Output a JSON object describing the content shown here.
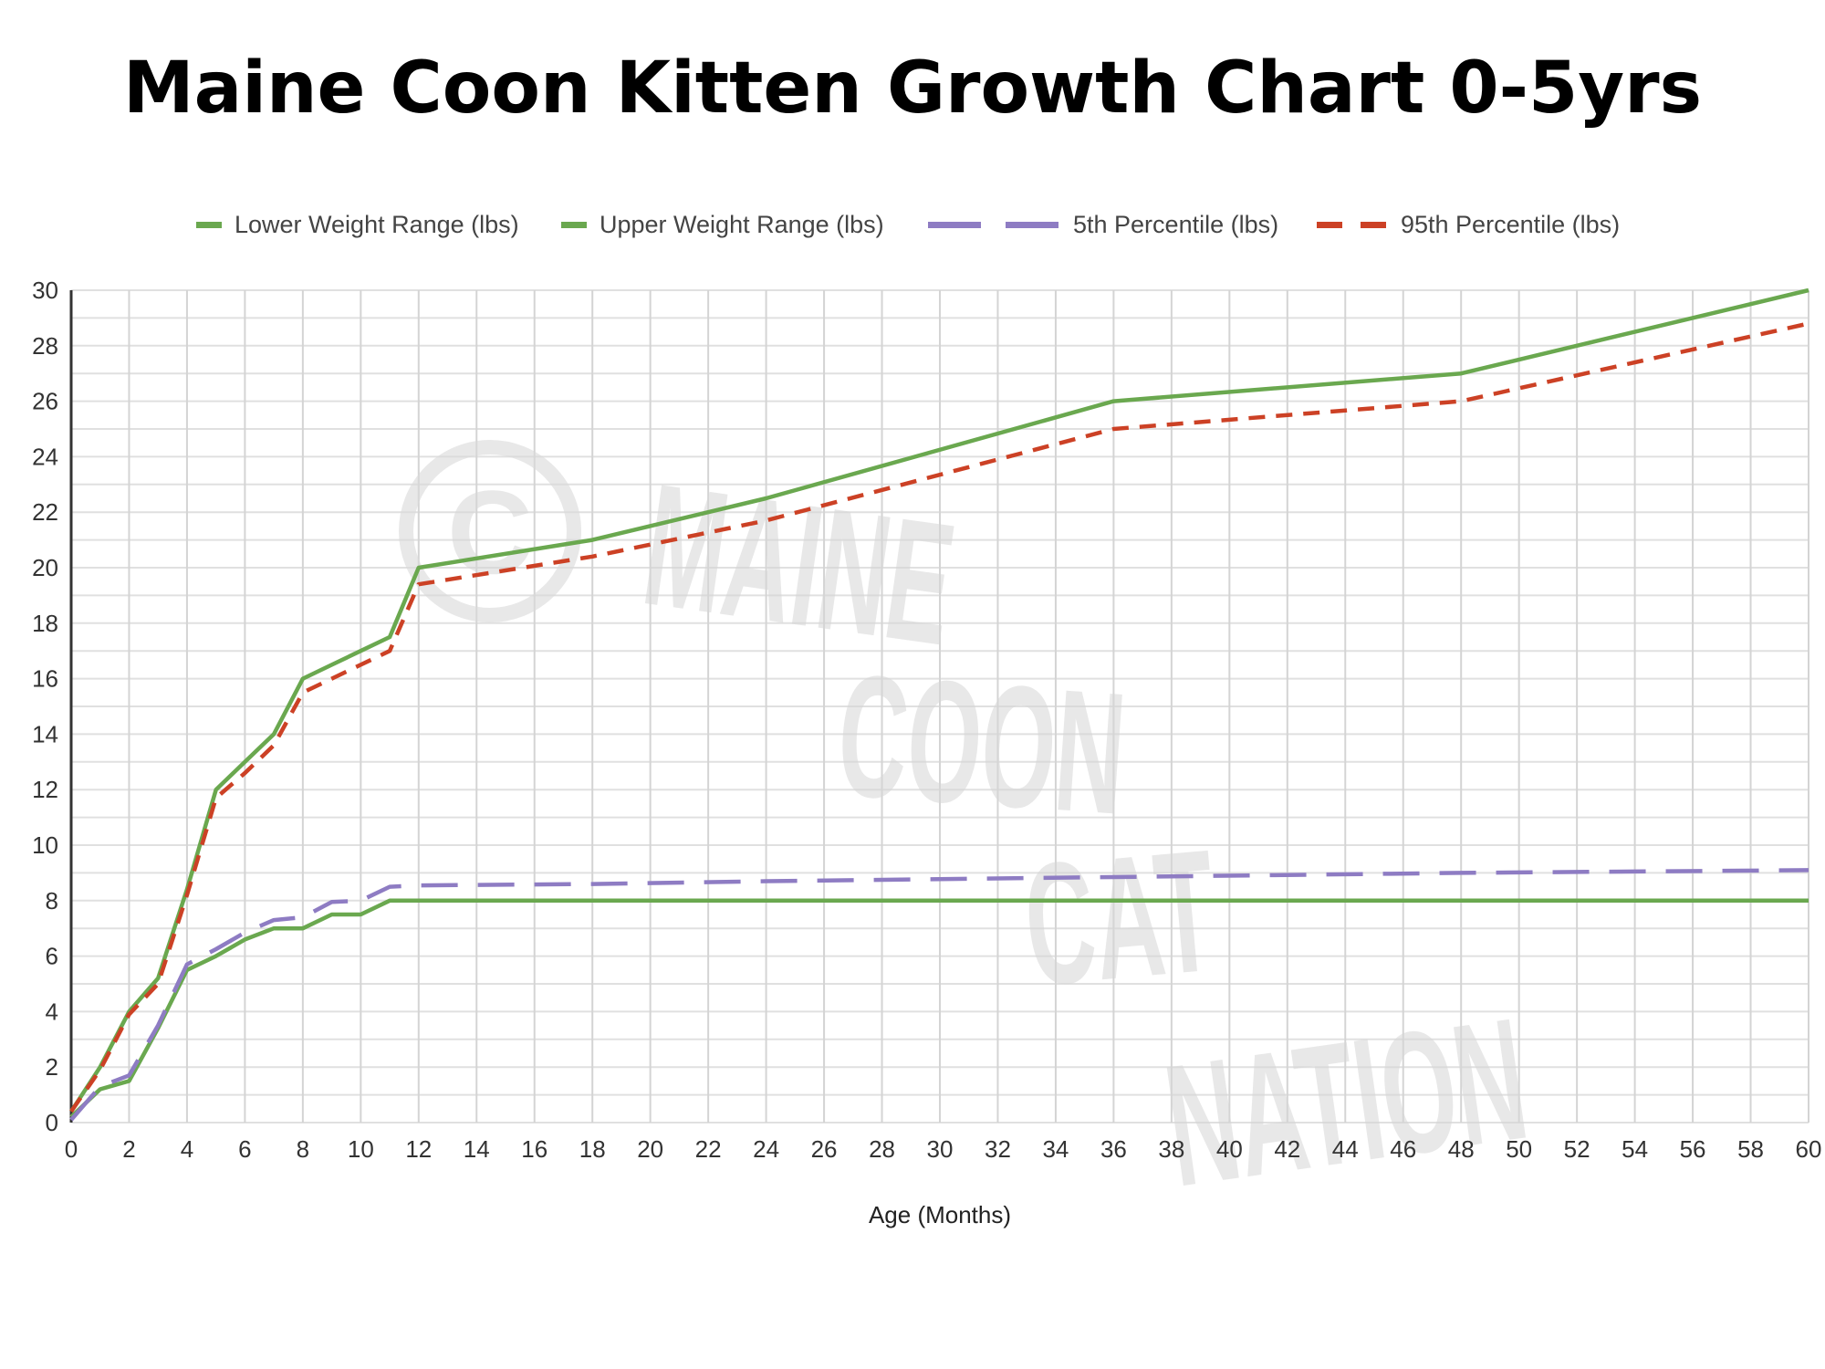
{
  "title": "Maine Coon Kitten Growth Chart 0-5yrs",
  "legend": [
    {
      "label": "Lower Weight Range (lbs)",
      "color": "#6aa84f",
      "style": "solid"
    },
    {
      "label": "Upper Weight Range (lbs)",
      "color": "#6aa84f",
      "style": "solid"
    },
    {
      "label": "5th Percentile (lbs)",
      "color": "#8e7cc3",
      "style": "long-dash"
    },
    {
      "label": "95th Percentile (lbs)",
      "color": "#cc4125",
      "style": "dash"
    }
  ],
  "xaxis_label": "Age (Months)",
  "watermark": [
    "MAINE",
    "COON",
    "CAT",
    "NATION"
  ],
  "chart_data": {
    "type": "line",
    "title": "Maine Coon Kitten Growth Chart 0-5yrs",
    "xlabel": "Age (Months)",
    "ylabel": "",
    "xlim": [
      0,
      60
    ],
    "ylim": [
      0,
      30
    ],
    "xticks": [
      0,
      2,
      4,
      6,
      8,
      10,
      12,
      14,
      16,
      18,
      20,
      22,
      24,
      26,
      28,
      30,
      32,
      34,
      36,
      38,
      40,
      42,
      44,
      46,
      48,
      50,
      52,
      54,
      56,
      58,
      60
    ],
    "yticks": [
      0,
      2,
      4,
      6,
      8,
      10,
      12,
      14,
      16,
      18,
      20,
      22,
      24,
      26,
      28,
      30
    ],
    "grid": true,
    "legend_position": "top",
    "x": [
      0,
      1,
      2,
      3,
      4,
      5,
      6,
      7,
      8,
      9,
      10,
      11,
      12,
      18,
      24,
      36,
      48,
      60
    ],
    "series": [
      {
        "name": "Lower Weight Range (lbs)",
        "color": "#6aa84f",
        "dash": "solid",
        "values": [
          0.2,
          1.2,
          1.5,
          3.4,
          5.5,
          6.0,
          6.6,
          7.0,
          7.0,
          7.5,
          7.5,
          8.0,
          8.0,
          8.0,
          8.0,
          8.0,
          8.0,
          8.0
        ]
      },
      {
        "name": "Upper Weight Range (lbs)",
        "color": "#6aa84f",
        "dash": "solid",
        "values": [
          0.4,
          2.0,
          4.0,
          5.2,
          8.4,
          12.0,
          13.0,
          14.0,
          16.0,
          16.5,
          17.0,
          17.5,
          20.0,
          21.0,
          22.5,
          26.0,
          27.0,
          30.0
        ]
      },
      {
        "name": "5th Percentile (lbs)",
        "color": "#8e7cc3",
        "dash": "long-dash",
        "values": [
          0.1,
          1.3,
          1.7,
          3.5,
          5.7,
          6.25,
          6.85,
          7.3,
          7.4,
          7.95,
          8.0,
          8.5,
          8.55,
          8.6,
          8.7,
          8.85,
          9.0,
          9.1
        ]
      },
      {
        "name": "95th Percentile (lbs)",
        "color": "#cc4125",
        "dash": "dash",
        "values": [
          0.4,
          1.9,
          3.9,
          5.0,
          8.2,
          11.7,
          12.6,
          13.6,
          15.5,
          16.0,
          16.5,
          17.0,
          19.4,
          20.4,
          21.7,
          25.0,
          26.0,
          28.8
        ]
      }
    ]
  }
}
